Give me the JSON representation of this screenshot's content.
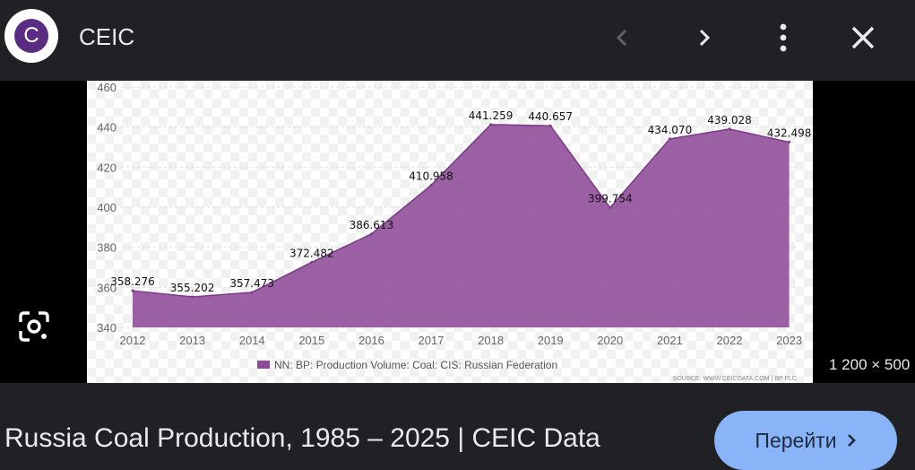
{
  "header": {
    "site_name": "CEIC",
    "logo_letter": "C"
  },
  "image_dims": "1 200 × 500",
  "result": {
    "title": "Russia Coal Production, 1985 – 2025 | CEIC Data",
    "visit_label": "Перейти"
  },
  "colors": {
    "background": "#202124",
    "accent": "#8ab4f8",
    "series": "#8e4a99",
    "logo": "#5b2d82"
  },
  "icons": [
    "back-arrow-icon",
    "forward-arrow-icon",
    "more-vert-icon",
    "close-icon",
    "google-lens-icon",
    "chevron-right-icon"
  ],
  "chart_data": {
    "type": "area",
    "x": [
      "2012",
      "2013",
      "2014",
      "2015",
      "2016",
      "2017",
      "2018",
      "2019",
      "2020",
      "2021",
      "2022",
      "2023"
    ],
    "series": [
      {
        "name": "NN: BP: Production Volume: Coal: CIS: Russian Federation",
        "values": [
          358.276,
          355.202,
          357.473,
          372.482,
          386.613,
          410.958,
          441.259,
          440.657,
          399.754,
          434.07,
          439.028,
          432.498
        ],
        "labels": [
          "358.276",
          "355.202",
          "357.473",
          "372.482",
          "386.613",
          "410.958",
          "441.259",
          "440.657",
          "399.754",
          "434.070",
          "439.028",
          "432.498"
        ]
      }
    ],
    "yticks": [
      "340",
      "360",
      "380",
      "400",
      "420",
      "440",
      "460"
    ],
    "ylim": [
      340,
      460
    ],
    "grid": true,
    "legend": "bottom-center",
    "source": "SOURCE: WWW.CEICDATA.COM | BP PLC"
  }
}
